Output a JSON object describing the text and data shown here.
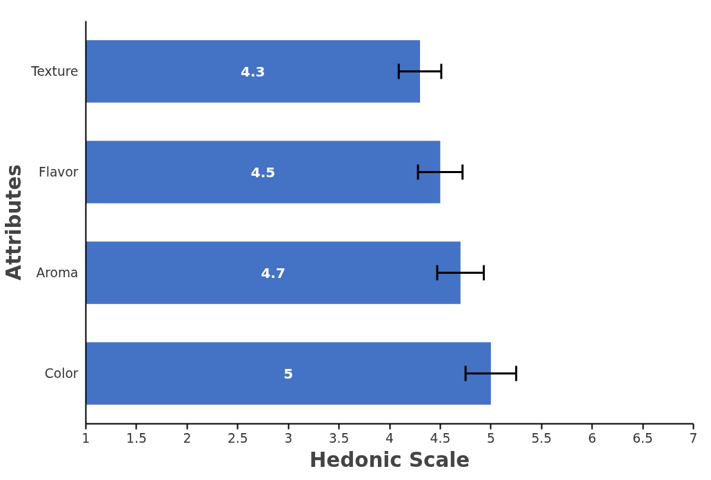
{
  "chart_data": {
    "type": "bar",
    "orientation": "horizontal",
    "categories": [
      "Texture",
      "Flavor",
      "Aroma",
      "Color"
    ],
    "values": [
      4.3,
      4.5,
      4.7,
      5
    ],
    "color": "#4472c4",
    "errors": [
      0.21,
      0.22,
      0.23,
      0.25
    ],
    "xlim": [
      1,
      7
    ],
    "xticks": [
      1,
      1.5,
      2,
      2.5,
      3,
      3.5,
      4,
      4.5,
      5,
      5.5,
      6,
      6.5,
      7
    ],
    "xlabel": "Hedonic Scale",
    "ylabel": "Attributes",
    "data_labels": true,
    "grid": false
  }
}
